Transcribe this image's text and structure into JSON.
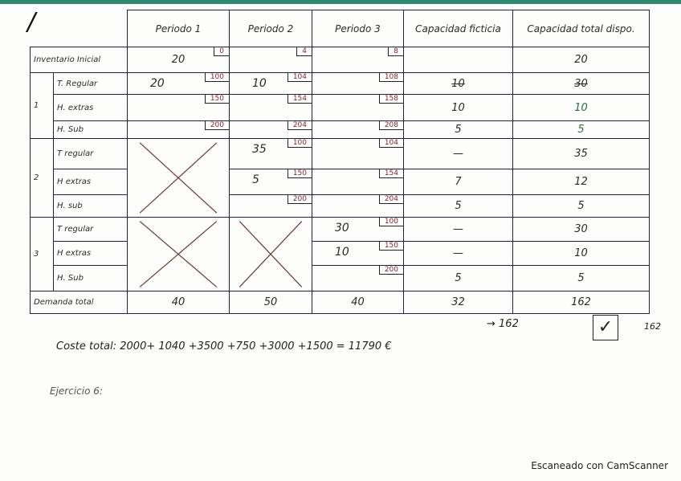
{
  "header": {
    "corner_mark": "/",
    "columns": [
      "Periodo 1",
      "Periodo 2",
      "Periodo 3",
      "Capacidad ficticia",
      "Capacidad total dispo."
    ]
  },
  "inventory": {
    "label": "Inventario Inicial",
    "p1_value": "20",
    "p1_cost": "0",
    "p2_cost": "4",
    "p3_cost": "8",
    "total": "20"
  },
  "periods": [
    {
      "number": "1",
      "rows": [
        {
          "label": "T. Regular",
          "p1": "20",
          "p1_cost": "100",
          "p2": "10",
          "p2_cost": "104",
          "p3": "",
          "p3_cost": "108",
          "fict": "10",
          "fict_struck": true,
          "total": "30",
          "total_struck": true
        },
        {
          "label": "H. extras",
          "p1": "",
          "p1_cost": "150",
          "p2": "",
          "p2_cost": "154",
          "p3": "",
          "p3_cost": "158",
          "fict": "10",
          "total": "10"
        },
        {
          "label": "H. Sub",
          "p1": "",
          "p1_cost": "200",
          "p2": "",
          "p2_cost": "204",
          "p3": "",
          "p3_cost": "208",
          "fict": "5",
          "total": "5"
        }
      ]
    },
    {
      "number": "2",
      "rows": [
        {
          "label": "T regular",
          "p2": "35",
          "p2_cost": "100",
          "p3": "",
          "p3_cost": "104",
          "fict": "—",
          "total": "35"
        },
        {
          "label": "H extras",
          "p2": "5",
          "p2_cost": "150",
          "p3": "",
          "p3_cost": "154",
          "fict": "7",
          "total": "12"
        },
        {
          "label": "H. sub",
          "p2": "",
          "p2_cost": "200",
          "p3": "",
          "p3_cost": "204",
          "fict": "5",
          "total": "5"
        }
      ]
    },
    {
      "number": "3",
      "rows": [
        {
          "label": "T regular",
          "p3": "30",
          "p3_cost": "100",
          "fict": "—",
          "total": "30"
        },
        {
          "label": "H extras",
          "p3": "10",
          "p3_cost": "150",
          "fict": "—",
          "total": "10"
        },
        {
          "label": "H. Sub",
          "p3": "",
          "p3_cost": "200",
          "fict": "5",
          "total": "5"
        }
      ]
    }
  ],
  "demand": {
    "label": "Demanda total",
    "p1": "40",
    "p2": "50",
    "p3": "40",
    "fict": "32",
    "total": "162"
  },
  "notes": {
    "arrow_total": "→ 162",
    "check": "✓",
    "margin_162": "162",
    "cost_line": "Coste total: 2000+ 1040 +3500 +750 +3000 +1500 = 11790 €",
    "exercise": "Ejercicio 6:"
  },
  "footer": "Escaneado con CamScanner",
  "colors": {
    "cost": "#8a2020",
    "ink": "#1d2340",
    "green": "#2c6e3a",
    "scanner_bar": "#2e8a6c"
  }
}
